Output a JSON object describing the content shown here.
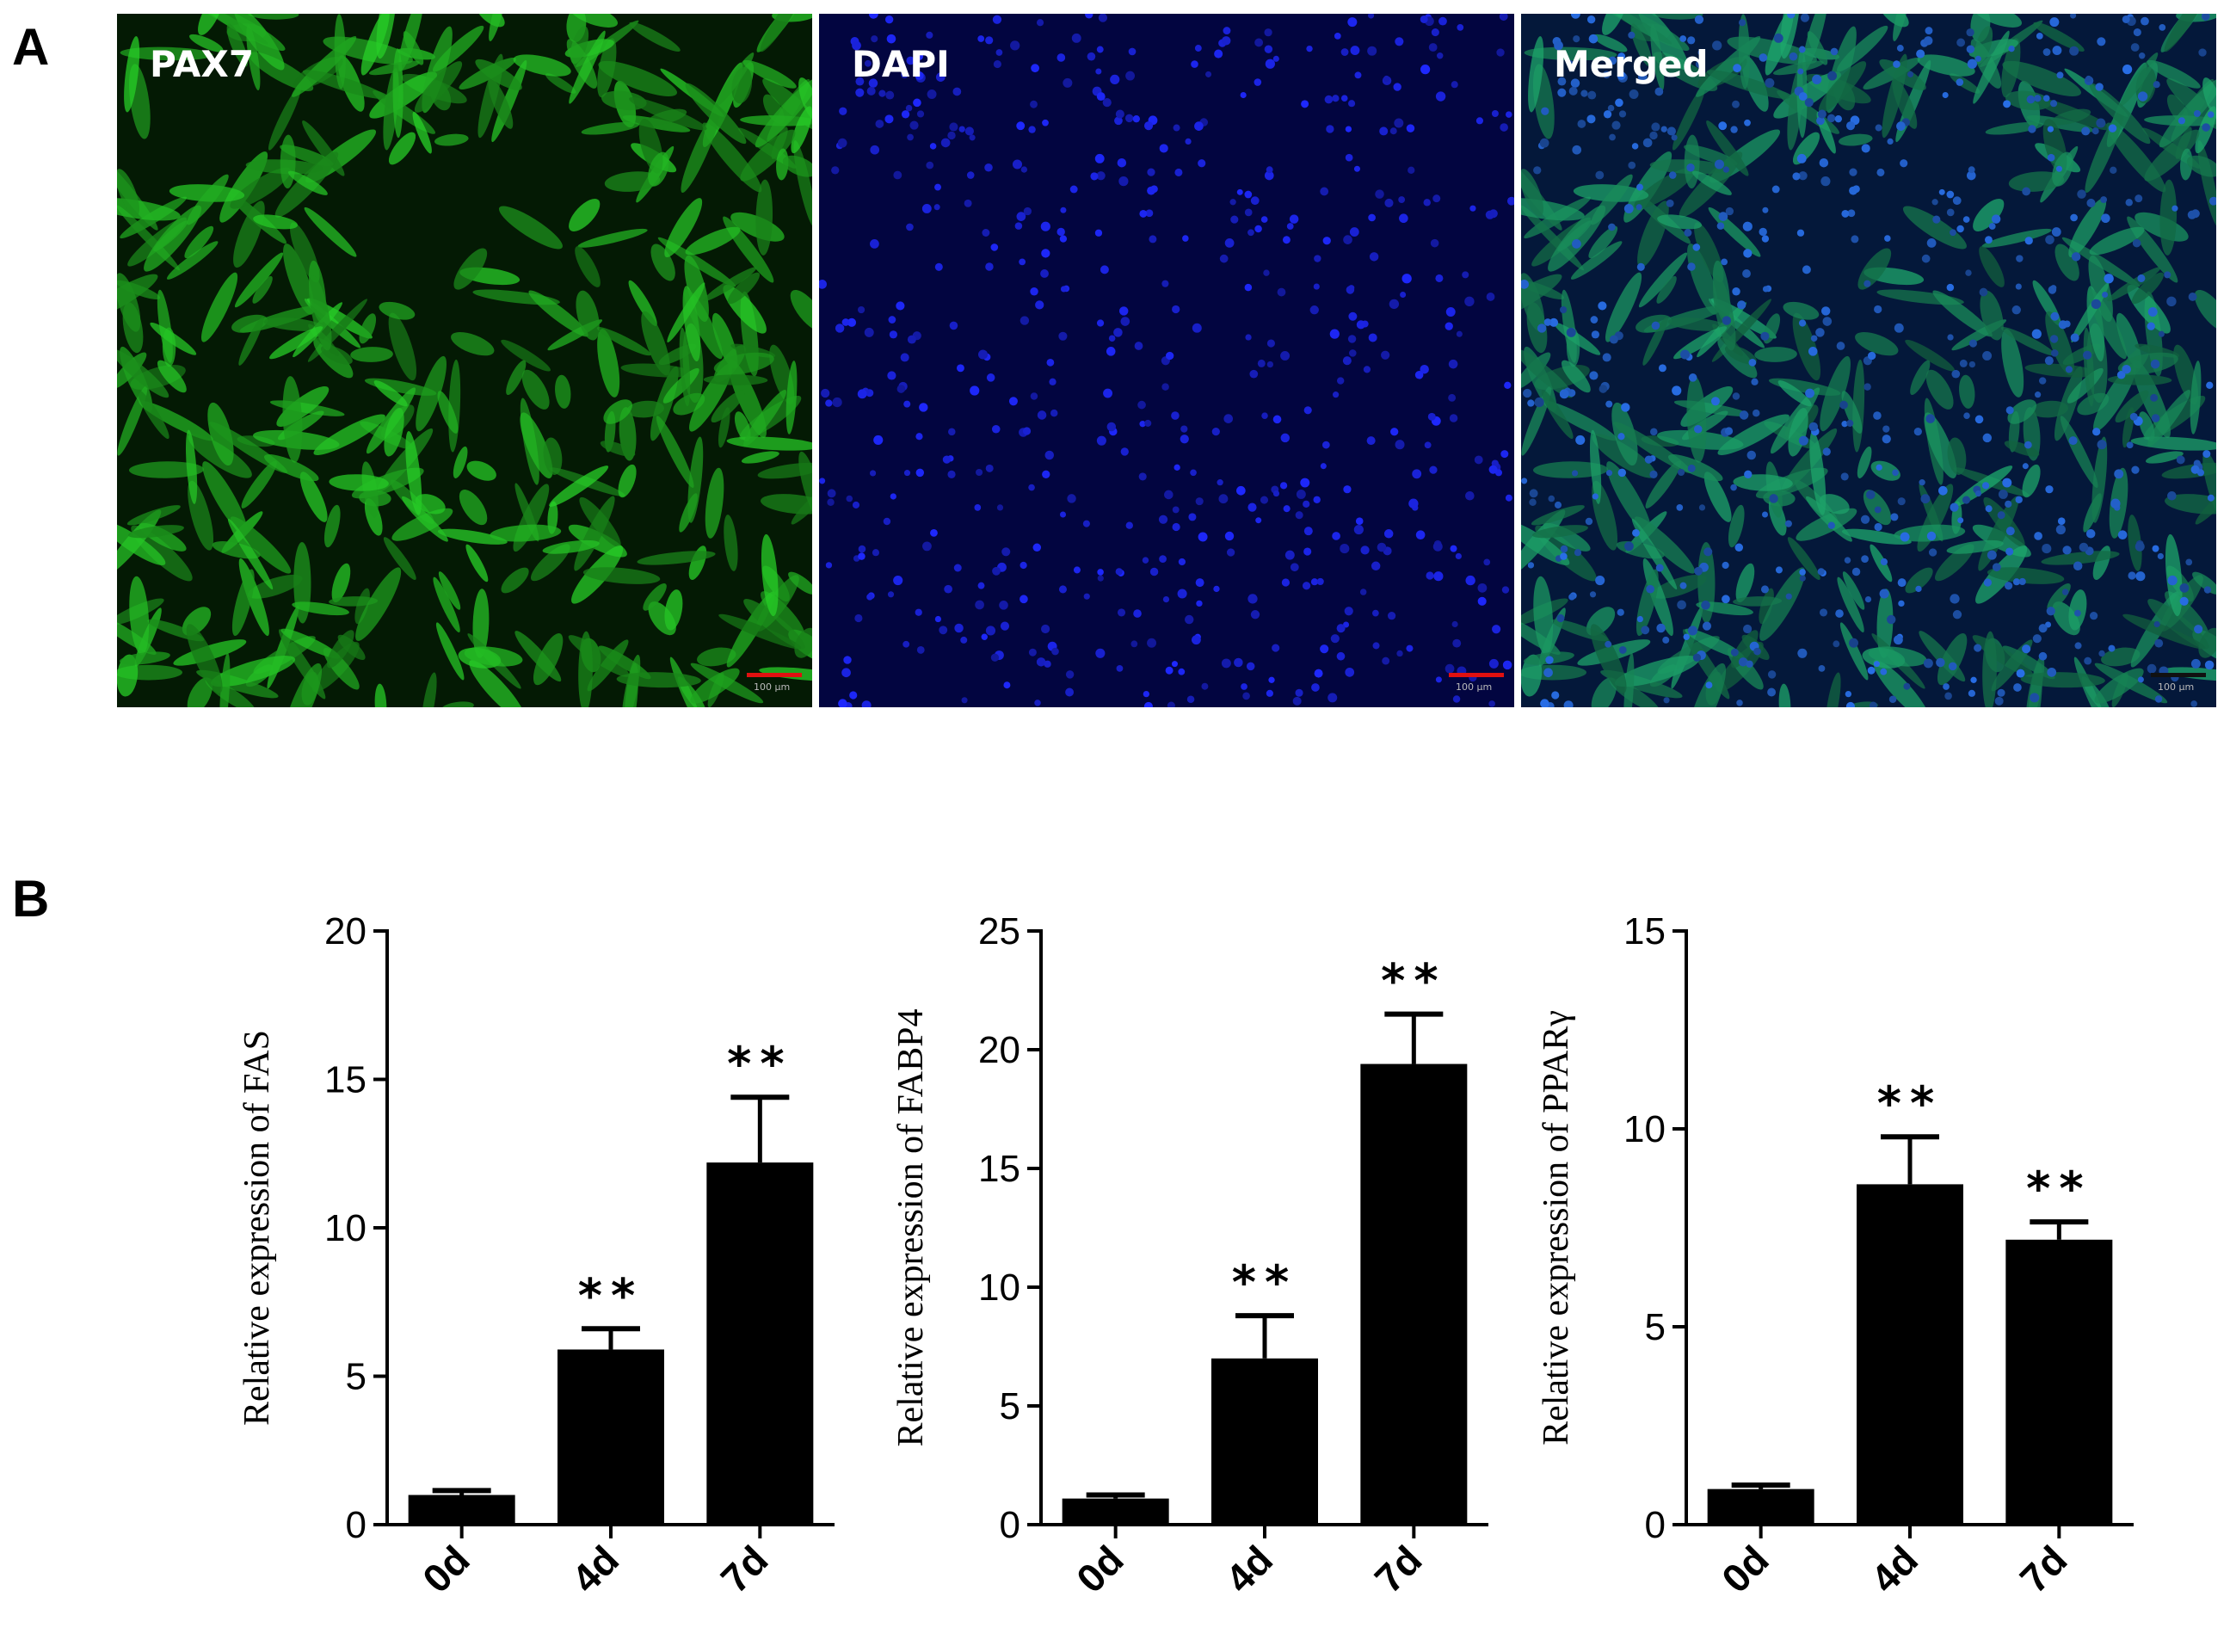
{
  "panels": {
    "a_label": "A",
    "b_label": "B"
  },
  "images": [
    {
      "label": "PAX7",
      "channel": "green",
      "scale_bar_color": "#e01010",
      "scale_bar_text": "100 μm"
    },
    {
      "label": "DAPI",
      "channel": "blue",
      "scale_bar_color": "#e01010",
      "scale_bar_text": "100 μm"
    },
    {
      "label": "Merged",
      "channel": "merged",
      "scale_bar_color": "#111111",
      "scale_bar_text": "100 μm"
    }
  ],
  "chart_data": [
    {
      "type": "bar",
      "categories": [
        "0d",
        "4d",
        "7d"
      ],
      "values": [
        1.0,
        5.9,
        12.2
      ],
      "errors": [
        0.15,
        0.7,
        2.2
      ],
      "significance": [
        "",
        "**",
        "**"
      ],
      "ylabel": "Relative expression of FAS",
      "ylim": [
        0,
        20
      ],
      "yticks": [
        "0",
        "5",
        "10",
        "15",
        "20"
      ],
      "bar_color": "#000000"
    },
    {
      "type": "bar",
      "categories": [
        "0d",
        "4d",
        "7d"
      ],
      "values": [
        1.1,
        7.0,
        19.4
      ],
      "errors": [
        0.15,
        1.8,
        2.1
      ],
      "significance": [
        "",
        "**",
        "**"
      ],
      "ylabel": "Relative expression of FABP4",
      "ylim": [
        0,
        25
      ],
      "yticks": [
        "0",
        "5",
        "10",
        "15",
        "20",
        "25"
      ],
      "bar_color": "#000000"
    },
    {
      "type": "bar",
      "categories": [
        "0d",
        "4d",
        "7d"
      ],
      "values": [
        0.9,
        8.6,
        7.2
      ],
      "errors": [
        0.1,
        1.2,
        0.45
      ],
      "significance": [
        "",
        "**",
        "**"
      ],
      "ylabel": "Relative expression of PPARγ",
      "ylim": [
        0,
        15
      ],
      "yticks": [
        "0",
        "5",
        "10",
        "15"
      ],
      "bar_color": "#000000"
    }
  ]
}
